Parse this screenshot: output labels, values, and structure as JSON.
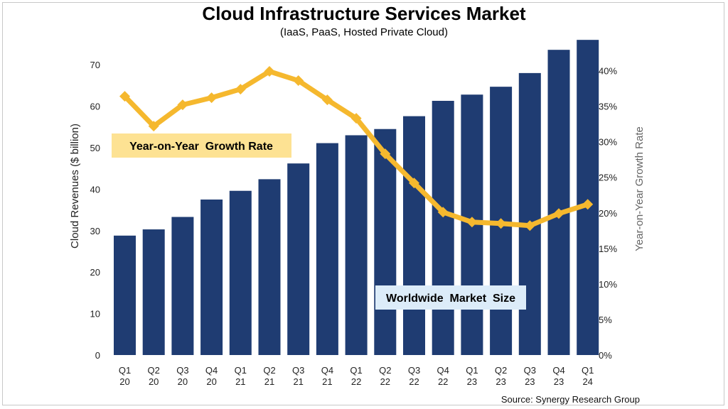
{
  "colors": {
    "bar": "#1f3c72",
    "line": "#f5b82e",
    "growth_box": "#fde293",
    "market_box": "#dcecf9"
  },
  "chart_data": {
    "type": "bar",
    "title": "Cloud Infrastructure Services Market",
    "subtitle": "(IaaS, PaaS, Hosted Private Cloud)",
    "ylabel": "Cloud Revenues ($ billion)",
    "y2label": "Year-on-Year Growth Rate",
    "ylim": [
      0,
      75
    ],
    "y2lim": [
      0,
      0.4375
    ],
    "yticks": [
      "0",
      "10",
      "20",
      "30",
      "40",
      "50",
      "60",
      "70"
    ],
    "y2ticks": [
      "0%",
      "5%",
      "10%",
      "15%",
      "20%",
      "25%",
      "30%",
      "35%",
      "40%"
    ],
    "categories": [
      {
        "q": "Q1",
        "y": "20"
      },
      {
        "q": "Q2",
        "y": "20"
      },
      {
        "q": "Q3",
        "y": "20"
      },
      {
        "q": "Q4",
        "y": "20"
      },
      {
        "q": "Q1",
        "y": "21"
      },
      {
        "q": "Q2",
        "y": "21"
      },
      {
        "q": "Q3",
        "y": "21"
      },
      {
        "q": "Q4",
        "y": "21"
      },
      {
        "q": "Q1",
        "y": "22"
      },
      {
        "q": "Q2",
        "y": "22"
      },
      {
        "q": "Q3",
        "y": "22"
      },
      {
        "q": "Q4",
        "y": "22"
      },
      {
        "q": "Q1",
        "y": "23"
      },
      {
        "q": "Q2",
        "y": "23"
      },
      {
        "q": "Q3",
        "y": "23"
      },
      {
        "q": "Q4",
        "y": "23"
      },
      {
        "q": "Q1",
        "y": "24"
      }
    ],
    "series": [
      {
        "name": "Worldwide Market Size",
        "type": "bar",
        "axis": "left",
        "values": [
          28.8,
          30.3,
          33.3,
          37.5,
          39.6,
          42.4,
          46.2,
          51.1,
          53.0,
          54.5,
          57.6,
          61.3,
          62.8,
          64.7,
          68.0,
          73.6,
          76.0
        ]
      },
      {
        "name": "Year-on-Year Growth Rate",
        "type": "line",
        "axis": "right",
        "values": [
          0.364,
          0.322,
          0.352,
          0.362,
          0.374,
          0.399,
          0.386,
          0.359,
          0.333,
          0.283,
          0.242,
          0.201,
          0.187,
          0.185,
          0.182,
          0.199,
          0.212
        ]
      }
    ],
    "annotations": [
      "Year-on-Year  Growth Rate",
      "Worldwide  Market  Size"
    ],
    "source": "Source: Synergy Research Group",
    "grid": false
  }
}
